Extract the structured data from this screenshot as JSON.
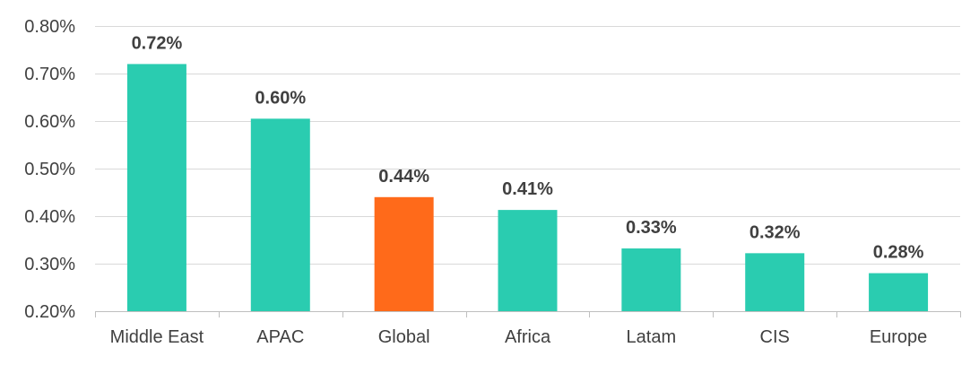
{
  "chart_data": {
    "type": "bar",
    "title": "",
    "xlabel": "",
    "ylabel": "",
    "categories": [
      "Middle East",
      "APAC",
      "Global",
      "Africa",
      "Latam",
      "CIS",
      "Europe"
    ],
    "values": [
      0.72,
      0.605,
      0.44,
      0.413,
      0.332,
      0.322,
      0.28
    ],
    "data_labels": [
      "0.72%",
      "0.60%",
      "0.44%",
      "0.41%",
      "0.33%",
      "0.32%",
      "0.28%"
    ],
    "bar_colors": [
      "#2ACCB0",
      "#2ACCB0",
      "#FF6A1A",
      "#2ACCB0",
      "#2ACCB0",
      "#2ACCB0",
      "#2ACCB0"
    ],
    "ylim": [
      0.2,
      0.8
    ],
    "y_ticks": [
      0.2,
      0.3,
      0.4,
      0.5,
      0.6,
      0.7,
      0.8
    ],
    "y_tick_labels": [
      "0.20%",
      "0.30%",
      "0.40%",
      "0.50%",
      "0.60%",
      "0.70%",
      "0.80%"
    ],
    "grid": true,
    "legend": "none",
    "colors": {
      "grid": "#D9D9D9",
      "axis": "#BFBFBF",
      "text": "#404040"
    }
  }
}
